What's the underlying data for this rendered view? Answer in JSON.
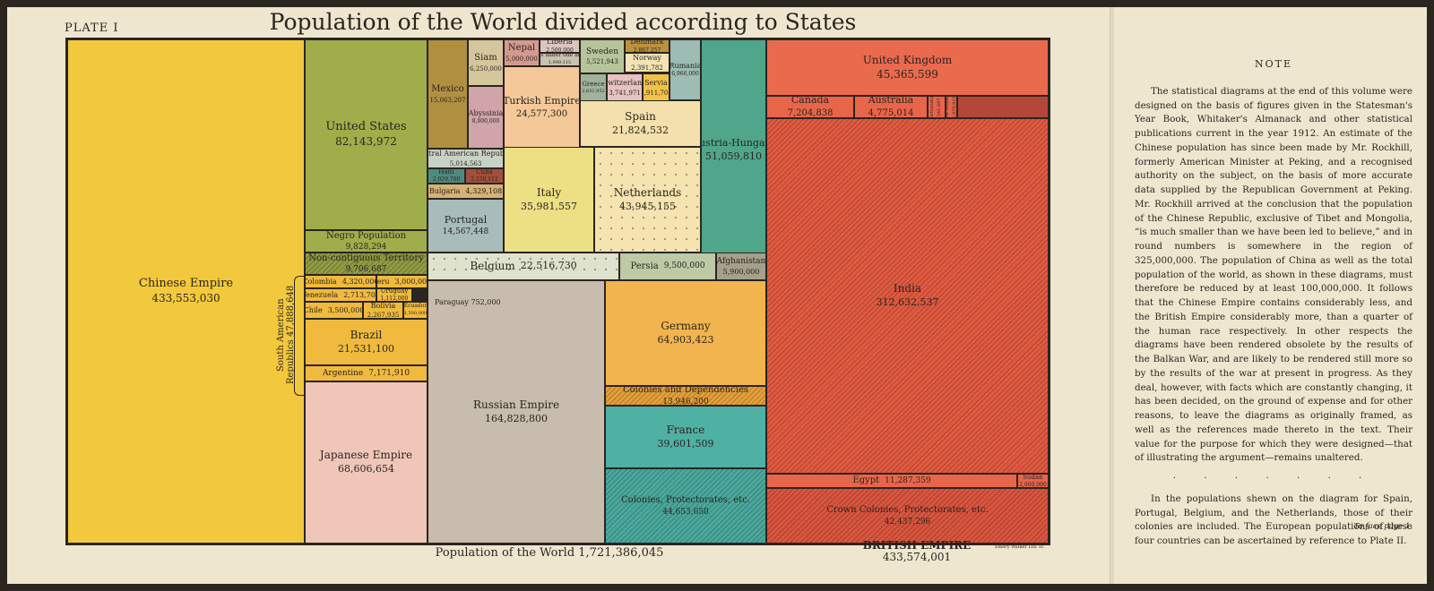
{
  "plate": "PLATE I",
  "title": "Population of the World divided according to States",
  "footer": {
    "world": "Population of the World 1,721,386,045",
    "british": "BRITISH EMPIRE",
    "british_value": "433,574,001",
    "printer": "Emery Walker Ltd. sc."
  },
  "south_america_label": "South American Republics 47,888,648",
  "paraguay_label": "Paraguay 752,000",
  "note": {
    "heading": "NOTE",
    "para1": "The statistical diagrams at the end of this volume were designed on the basis of figures given in the Statesman's Year Book, Whitaker's Almanack and other statistical publications current in the year 1912. An estimate of the Chinese population has since been made by Mr. Rockhill, formerly American Minister at Peking, and a recognised authority on the subject, on the basis of more accurate data supplied by the Republican Government at Peking. Mr. Rockhill arrived at the conclusion that the population of the Chinese Republic, exclusive of Tibet and Mongolia, “is much smaller than we have been led to believe,” and in round numbers is somewhere in the region of 325,000,000. The population of China as well as the total population of the world, as shown in these diagrams, must therefore be reduced by at least 100,000,000. It follows that the Chinese Empire contains considerably less, and the British Empire considerably more, than a quarter of the human race respectively. In other respects the diagrams have been rendered obsolete by the results of the Balkan War, and are likely to be rendered still more so by the results of the war at present in progress. As they deal, however, with facts which are constantly changing, it has been decided, on the ground of expense and for other reasons, to leave the diagrams as originally framed, as well as the references made thereto in the text. Their value for the purpose for which they were designed—that of illustrating the argument—remains unaltered.",
    "dots": ". . . . . . .",
    "para2": "In the populations shewn on the diagram for Spain, Portugal, Belgium, and the Netherlands, those of their colonies are included. The European populations of these four countries can be ascertained by reference to Plate II.",
    "face": "To face page 1."
  },
  "chart_data": {
    "type": "table",
    "title": "Population of the World divided according to States",
    "total": 1721386045,
    "british_empire_total": 433574001,
    "cells": [
      {
        "label": "Chinese Empire",
        "value_text": "433,553,030",
        "value": 433553030,
        "color": "#f2c83c"
      },
      {
        "label": "United States",
        "value_text": "82,143,972",
        "value": 82143972,
        "color": "#9fae4a"
      },
      {
        "label": "Negro Population",
        "value_text": "9,828,294",
        "value": 9828294,
        "color": "#9fae4a"
      },
      {
        "label": "Non-contiguous Territory",
        "value_text": "9,706,687",
        "value": 9706687,
        "color": "#8f9c42",
        "pattern": "hatch"
      },
      {
        "label": "Colombia",
        "value_text": "4,320,000",
        "value": 4320000,
        "color": "#f0ba3e"
      },
      {
        "label": "Peru",
        "value_text": "3,000,000",
        "value": 3000000,
        "color": "#f0ba3e"
      },
      {
        "label": "Venezuela",
        "value_text": "2,713,703",
        "value": 2713703,
        "color": "#f0ba3e"
      },
      {
        "label": "Uruguay",
        "value_text": "1,112,000",
        "value": 1112000,
        "color": "#f0ba3e"
      },
      {
        "label": "Chile",
        "value_text": "3,500,000",
        "value": 3500000,
        "color": "#f0ba3e"
      },
      {
        "label": "Bolivia",
        "value_text": "2,267,935",
        "value": 2267935,
        "color": "#f0ba3e"
      },
      {
        "label": "Ecuador",
        "value_text": "1,500,000",
        "value": 1500000,
        "color": "#f0ba3e"
      },
      {
        "label": "Brazil",
        "value_text": "21,531,100",
        "value": 21531100,
        "color": "#f0ba3e"
      },
      {
        "label": "Argentine",
        "value_text": "7,171,910",
        "value": 7171910,
        "color": "#f0ba3e"
      },
      {
        "label": "Japanese Empire",
        "value_text": "68,606,654",
        "value": 68606654,
        "color": "#efc6b8"
      },
      {
        "label": "Mexico",
        "value_text": "15,063,207",
        "value": 15063207,
        "color": "#b09040"
      },
      {
        "label": "Siam",
        "value_text": "6,250,000",
        "value": 6250000,
        "color": "#d6c69c"
      },
      {
        "label": "Abyssinia",
        "value_text": "8,000,000",
        "value": 8000000,
        "color": "#d0a4a8"
      },
      {
        "label": "Nepal",
        "value_text": "5,000,000",
        "value": 5000000,
        "color": "#d49a90"
      },
      {
        "label": "Liberia",
        "value_text": "2,500,000",
        "value": 2500000,
        "color": "#d9c6c0"
      },
      {
        "label": "States under one million",
        "value_text": "1,999,115",
        "value": 1999115,
        "color": "#c9c2b0"
      },
      {
        "label": "Turkish Empire",
        "value_text": "24,577,300",
        "value": 24577300,
        "color": "#f4c898"
      },
      {
        "label": "Sweden",
        "value_text": "5,521,943",
        "value": 5521943,
        "color": "#b6c49a"
      },
      {
        "label": "Denmark",
        "value_text": "2,867,257",
        "value": 2867257,
        "color": "#b8923c"
      },
      {
        "label": "Norway",
        "value_text": "2,391,782",
        "value": 2391782,
        "color": "#f2e2b4"
      },
      {
        "label": "Greece",
        "value_text": "2,631,952",
        "value": 2631952,
        "color": "#9fb29c"
      },
      {
        "label": "Switzerland",
        "value_text": "3,741,971",
        "value": 3741971,
        "color": "#e6c2c0"
      },
      {
        "label": "Servia",
        "value_text": "2,911,701",
        "value": 2911701,
        "color": "#f0c248"
      },
      {
        "label": "Rumania",
        "value_text": "6,966,000",
        "value": 6966000,
        "color": "#9cbcb4"
      },
      {
        "label": "Spain",
        "value_text": "21,824,532",
        "value": 21824532,
        "color": "#f3e0ac"
      },
      {
        "label": "Austria-Hungary",
        "value_text": "51,059,810",
        "value": 51059810,
        "color": "#4fa68a"
      },
      {
        "label": "Central American Republics",
        "value_text": "5,014,563",
        "value": 5014563,
        "color": "#c8d2c4"
      },
      {
        "label": "Haiti",
        "value_text": "2,029,700",
        "value": 2029700,
        "color": "#4f8a7e"
      },
      {
        "label": "Cuba",
        "value_text": "2,150,112",
        "value": 2150112,
        "color": "#a0503e"
      },
      {
        "label": "Bulgaria",
        "value_text": "4,329,108",
        "value": 4329108,
        "color": "#d6b276"
      },
      {
        "label": "Portugal",
        "value_text": "14,567,448",
        "value": 14567448,
        "color": "#a8bcbc"
      },
      {
        "label": "Italy",
        "value_text": "35,981,557",
        "value": 35981557,
        "color": "#ecdf84"
      },
      {
        "label": "Netherlands",
        "value_text": "43,945,155",
        "value": 43945155,
        "color": "#f5e3b0",
        "pattern": "dots"
      },
      {
        "label": "Belgium",
        "value_text": "22,516,730",
        "value": 22516730,
        "color": "#dfe2cc",
        "pattern": "dots"
      },
      {
        "label": "Persia",
        "value_text": "9,500,000",
        "value": 9500000,
        "color": "#bccaa6"
      },
      {
        "label": "Afghanistan",
        "value_text": "5,900,000",
        "value": 5900000,
        "color": "#a4a08a"
      },
      {
        "label": "Russian Empire",
        "value_text": "164,828,800",
        "value": 164828800,
        "color": "#c7bcad"
      },
      {
        "label": "Germany",
        "value_text": "64,903,423",
        "value": 64903423,
        "color": "#f2b44e"
      },
      {
        "label": "Colonies and Dependencies",
        "value_text": "13,946,200",
        "value": 13946200,
        "color": "#e39f38",
        "pattern": "hatch"
      },
      {
        "label": "France",
        "value_text": "39,601,509",
        "value": 39601509,
        "color": "#4fb0a4"
      },
      {
        "label": "Colonies, Protectorates, etc.",
        "value_text": "44,653,650",
        "value": 44653650,
        "color": "#4aa89c",
        "pattern": "hatch"
      },
      {
        "label": "United Kingdom",
        "value_text": "45,365,599",
        "value": 45365599,
        "color": "#ea6a4e"
      },
      {
        "label": "Canada",
        "value_text": "7,204,838",
        "value": 7204838,
        "color": "#e8654a"
      },
      {
        "label": "Australia",
        "value_text": "4,775,014",
        "value": 4775014,
        "color": "#e8654a"
      },
      {
        "label": "Newfoundland",
        "value_text": "241,607",
        "value": 241607,
        "color": "#e8654a"
      },
      {
        "label": "New Zealand",
        "value_text": "1,070,910",
        "value": 1070910,
        "color": "#e8654a"
      },
      {
        "label": "India",
        "value_text": "312,632,537",
        "value": 312632537,
        "color": "#e05a40",
        "pattern": "hatch"
      },
      {
        "label": "Egypt",
        "value_text": "11,287,359",
        "value": 11287359,
        "color": "#e8654a"
      },
      {
        "label": "Sudan",
        "value_text": "2,600,000",
        "value": 2600000,
        "color": "#e8654a"
      },
      {
        "label": "Crown Colonies, Protectorates, etc.",
        "value_text": "42,437,296",
        "value": 42437296,
        "color": "#d9553e",
        "pattern": "hatch"
      }
    ]
  }
}
